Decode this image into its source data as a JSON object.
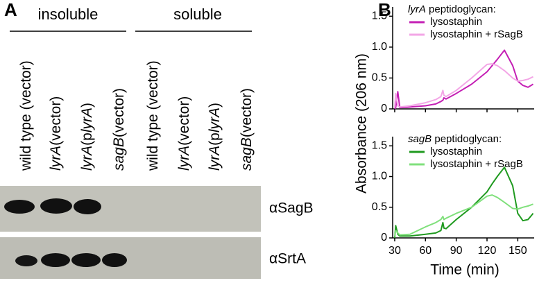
{
  "panel_a": {
    "label": "A",
    "groups": [
      "insoluble",
      "soluble"
    ],
    "lanes": [
      [
        {
          "text": "wild type (vector)"
        }
      ],
      [
        {
          "text": "lyrA",
          "italic": true
        },
        {
          "text": "(vector)"
        }
      ],
      [
        {
          "text": "lyrA",
          "italic": true
        },
        {
          "text": "(p"
        },
        {
          "text": "lyrA",
          "italic": true
        },
        {
          "text": ")"
        }
      ],
      [
        {
          "text": "sagB",
          "italic": true
        },
        {
          "text": "(vector)"
        }
      ],
      [
        {
          "text": "wild type (vector)"
        }
      ],
      [
        {
          "text": "lyrA",
          "italic": true
        },
        {
          "text": "(vector)"
        }
      ],
      [
        {
          "text": "lyrA",
          "italic": true
        },
        {
          "text": "(p"
        },
        {
          "text": "lyrA",
          "italic": true
        },
        {
          "text": ")"
        }
      ],
      [
        {
          "text": "sagB",
          "italic": true
        },
        {
          "text": "(vector)"
        }
      ]
    ],
    "blots": [
      "αSagB",
      "αSrtA"
    ]
  },
  "panel_b_label": "B",
  "chart_data": [
    {
      "type": "line",
      "legend_title": [
        {
          "text": "lyrA",
          "italic": true
        },
        {
          "text": " peptidoglycan:"
        }
      ],
      "ylabel": "Absorbance (206 nm)",
      "x": [
        30,
        31,
        33,
        35,
        45,
        60,
        70,
        75,
        77,
        78,
        80,
        90,
        105,
        120,
        125,
        130,
        137,
        145,
        150,
        155,
        160,
        165
      ],
      "series": [
        {
          "name": "lysostaphin",
          "color": "#c41fb4",
          "values": [
            0,
            0.02,
            0.28,
            0.02,
            0.03,
            0.05,
            0.08,
            0.12,
            0.14,
            0.18,
            0.16,
            0.25,
            0.4,
            0.6,
            0.7,
            0.8,
            0.95,
            0.7,
            0.45,
            0.38,
            0.35,
            0.4
          ]
        },
        {
          "name": "lysostaphin + rSagB",
          "color": "#f3a6e6",
          "values": [
            0.02,
            0.25,
            0.05,
            0.03,
            0.05,
            0.1,
            0.15,
            0.2,
            0.3,
            0.22,
            0.2,
            0.3,
            0.5,
            0.72,
            0.73,
            0.7,
            0.62,
            0.5,
            0.45,
            0.46,
            0.48,
            0.52
          ]
        }
      ],
      "xlim": [
        28,
        166
      ],
      "xticks": [
        30,
        60,
        90,
        120,
        150
      ],
      "ylim": [
        0,
        1.65
      ],
      "yticks": [
        0,
        0.5,
        {
          "value": 1,
          "label": "1.0"
        },
        1.5
      ]
    },
    {
      "type": "line",
      "legend_title": [
        {
          "text": "sagB",
          "italic": true
        },
        {
          "text": " peptidoglycan:"
        }
      ],
      "xlabel": "Time (min)",
      "x": [
        30,
        31,
        33,
        35,
        45,
        60,
        70,
        75,
        77,
        78,
        80,
        90,
        105,
        120,
        125,
        130,
        137,
        145,
        150,
        155,
        160,
        165
      ],
      "series": [
        {
          "name": "lysostaphin",
          "color": "#1f9a1f",
          "values": [
            0,
            0.2,
            0.06,
            0.03,
            0.03,
            0.06,
            0.08,
            0.12,
            0.25,
            0.16,
            0.15,
            0.3,
            0.5,
            0.75,
            0.88,
            1.0,
            1.15,
            0.85,
            0.4,
            0.28,
            0.3,
            0.4
          ]
        },
        {
          "name": "lysostaphin + rSagB",
          "color": "#80e07c",
          "values": [
            0.02,
            0.12,
            0.08,
            0.05,
            0.06,
            0.18,
            0.25,
            0.3,
            0.35,
            0.3,
            0.32,
            0.4,
            0.5,
            0.68,
            0.7,
            0.66,
            0.58,
            0.48,
            0.47,
            0.5,
            0.52,
            0.55
          ]
        }
      ],
      "xlim": [
        28,
        166
      ],
      "xticks": [
        30,
        60,
        90,
        120,
        150
      ],
      "ylim": [
        0,
        1.65
      ],
      "yticks": [
        0,
        0.5,
        {
          "value": 1,
          "label": "1.0"
        },
        1.5
      ]
    }
  ]
}
